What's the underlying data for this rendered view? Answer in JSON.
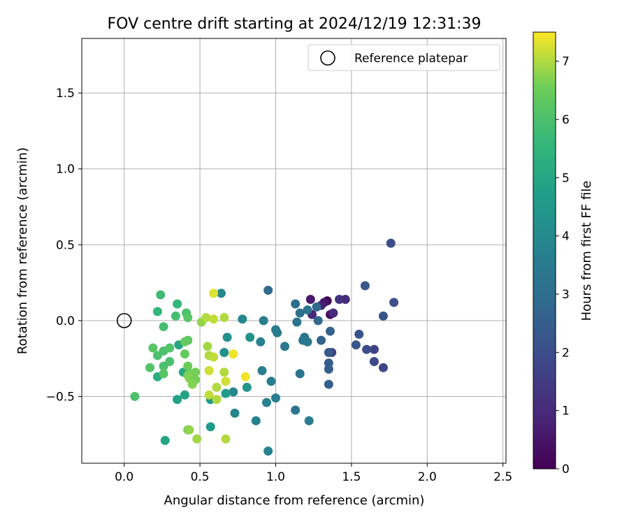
{
  "chart_data": {
    "type": "scatter",
    "title": "FOV centre drift starting at 2024/12/19 12:31:39",
    "xlabel": "Angular distance from reference (arcmin)",
    "ylabel": "Rotation from reference (arcmin)",
    "xlim": [
      -0.28,
      2.52
    ],
    "ylim": [
      -0.94,
      1.86
    ],
    "xticks": [
      0.0,
      0.5,
      1.0,
      1.5,
      2.0,
      2.5
    ],
    "xtick_labels": [
      "0.0",
      "0.5",
      "1.0",
      "1.5",
      "2.0",
      "2.5"
    ],
    "yticks": [
      -0.5,
      0.0,
      0.5,
      1.0,
      1.5
    ],
    "ytick_labels": [
      "−0.5",
      "0.0",
      "0.5",
      "1.0",
      "1.5"
    ],
    "grid": true,
    "legend": {
      "placement": "top-right",
      "entries": [
        "Reference platepar"
      ]
    },
    "reference_point": {
      "x": 0.0,
      "y": 0.0
    },
    "colorbar": {
      "label": "Hours from first FF file",
      "colormap": "viridis",
      "range": [
        0,
        7.5
      ],
      "ticks": [
        0,
        1,
        2,
        3,
        4,
        5,
        6,
        7
      ],
      "tick_labels": [
        "0",
        "1",
        "2",
        "3",
        "4",
        "5",
        "6",
        "7"
      ]
    },
    "points": [
      {
        "x": 1.34,
        "y": 0.13,
        "c": 0.05
      },
      {
        "x": 1.36,
        "y": 0.04,
        "c": 0.3
      },
      {
        "x": 1.32,
        "y": 0.12,
        "c": 0.5
      },
      {
        "x": 1.23,
        "y": 0.14,
        "c": 0.6
      },
      {
        "x": 1.3,
        "y": 0.1,
        "c": 0.8
      },
      {
        "x": 1.24,
        "y": 0.04,
        "c": 0.9
      },
      {
        "x": 1.38,
        "y": 0.05,
        "c": 1.0
      },
      {
        "x": 1.42,
        "y": 0.14,
        "c": 1.2
      },
      {
        "x": 1.46,
        "y": 0.14,
        "c": 1.1
      },
      {
        "x": 1.37,
        "y": -0.21,
        "c": 1.6
      },
      {
        "x": 1.65,
        "y": -0.19,
        "c": 1.7
      },
      {
        "x": 1.71,
        "y": -0.31,
        "c": 1.8
      },
      {
        "x": 1.65,
        "y": -0.27,
        "c": 1.9
      },
      {
        "x": 1.6,
        "y": -0.19,
        "c": 2.0
      },
      {
        "x": 1.76,
        "y": 0.51,
        "c": 2.0
      },
      {
        "x": 1.78,
        "y": 0.12,
        "c": 2.1
      },
      {
        "x": 1.71,
        "y": 0.03,
        "c": 2.2
      },
      {
        "x": 1.59,
        "y": 0.23,
        "c": 2.3
      },
      {
        "x": 1.55,
        "y": -0.09,
        "c": 2.2
      },
      {
        "x": 1.53,
        "y": -0.16,
        "c": 2.3
      },
      {
        "x": 1.35,
        "y": -0.21,
        "c": 2.4
      },
      {
        "x": 1.35,
        "y": -0.28,
        "c": 2.5
      },
      {
        "x": 1.35,
        "y": -0.32,
        "c": 2.5
      },
      {
        "x": 1.35,
        "y": -0.42,
        "c": 2.6
      },
      {
        "x": 1.36,
        "y": -0.07,
        "c": 2.6
      },
      {
        "x": 1.3,
        "y": -0.13,
        "c": 2.7
      },
      {
        "x": 1.28,
        "y": 0.0,
        "c": 2.8
      },
      {
        "x": 1.27,
        "y": 0.09,
        "c": 2.9
      },
      {
        "x": 0.95,
        "y": 0.2,
        "c": 3.0
      },
      {
        "x": 1.13,
        "y": 0.11,
        "c": 3.0
      },
      {
        "x": 1.16,
        "y": 0.05,
        "c": 3.1
      },
      {
        "x": 1.14,
        "y": -0.01,
        "c": 3.2
      },
      {
        "x": 1.21,
        "y": 0.07,
        "c": 3.2
      },
      {
        "x": 1.19,
        "y": -0.11,
        "c": 3.3
      },
      {
        "x": 1.21,
        "y": -0.14,
        "c": 3.3
      },
      {
        "x": 1.18,
        "y": -0.13,
        "c": 3.4
      },
      {
        "x": 1.16,
        "y": -0.35,
        "c": 3.2
      },
      {
        "x": 1.13,
        "y": -0.59,
        "c": 3.3
      },
      {
        "x": 1.22,
        "y": -0.66,
        "c": 3.5
      },
      {
        "x": 1.06,
        "y": -0.17,
        "c": 3.4
      },
      {
        "x": 1.0,
        "y": -0.06,
        "c": 3.5
      },
      {
        "x": 1.01,
        "y": -0.08,
        "c": 3.5
      },
      {
        "x": 0.92,
        "y": 0.0,
        "c": 3.6
      },
      {
        "x": 0.9,
        "y": -0.14,
        "c": 3.7
      },
      {
        "x": 0.91,
        "y": -0.33,
        "c": 3.6
      },
      {
        "x": 0.97,
        "y": -0.4,
        "c": 3.6
      },
      {
        "x": 1.0,
        "y": -0.51,
        "c": 3.6
      },
      {
        "x": 0.94,
        "y": -0.54,
        "c": 3.7
      },
      {
        "x": 0.95,
        "y": -0.86,
        "c": 3.8
      },
      {
        "x": 0.87,
        "y": -0.66,
        "c": 3.8
      },
      {
        "x": 0.73,
        "y": -0.61,
        "c": 3.9
      },
      {
        "x": 0.72,
        "y": -0.47,
        "c": 3.9
      },
      {
        "x": 0.64,
        "y": 0.18,
        "c": 4.0
      },
      {
        "x": 0.78,
        "y": 0.01,
        "c": 4.0
      },
      {
        "x": 0.68,
        "y": -0.11,
        "c": 4.2
      },
      {
        "x": 0.66,
        "y": -0.21,
        "c": 4.3
      },
      {
        "x": 0.83,
        "y": -0.11,
        "c": 4.3
      },
      {
        "x": 0.81,
        "y": -0.44,
        "c": 4.4
      },
      {
        "x": 0.67,
        "y": -0.48,
        "c": 4.6
      },
      {
        "x": 0.57,
        "y": -0.7,
        "c": 4.6
      },
      {
        "x": 0.57,
        "y": -0.52,
        "c": 4.6
      },
      {
        "x": 0.35,
        "y": -0.52,
        "c": 4.8
      },
      {
        "x": 0.27,
        "y": -0.79,
        "c": 4.9
      },
      {
        "x": 0.4,
        "y": -0.49,
        "c": 4.9
      },
      {
        "x": 0.36,
        "y": -0.16,
        "c": 5.0
      },
      {
        "x": 0.39,
        "y": -0.34,
        "c": 5.1
      },
      {
        "x": 0.22,
        "y": -0.37,
        "c": 5.3
      },
      {
        "x": 0.22,
        "y": 0.06,
        "c": 5.6
      },
      {
        "x": 0.26,
        "y": -0.04,
        "c": 5.9
      },
      {
        "x": 0.35,
        "y": 0.11,
        "c": 5.6
      },
      {
        "x": 0.24,
        "y": 0.17,
        "c": 5.8
      },
      {
        "x": 0.34,
        "y": 0.03,
        "c": 5.9
      },
      {
        "x": 0.41,
        "y": 0.05,
        "c": 6.0
      },
      {
        "x": 0.42,
        "y": 0.02,
        "c": 6.2
      },
      {
        "x": 0.26,
        "y": -0.2,
        "c": 6.0
      },
      {
        "x": 0.3,
        "y": -0.18,
        "c": 6.1
      },
      {
        "x": 0.19,
        "y": -0.18,
        "c": 6.2
      },
      {
        "x": 0.22,
        "y": -0.23,
        "c": 6.0
      },
      {
        "x": 0.3,
        "y": -0.27,
        "c": 6.0
      },
      {
        "x": 0.26,
        "y": -0.3,
        "c": 6.0
      },
      {
        "x": 0.17,
        "y": -0.31,
        "c": 6.1
      },
      {
        "x": 0.26,
        "y": -0.35,
        "c": 6.2
      },
      {
        "x": 0.07,
        "y": -0.5,
        "c": 6.0
      },
      {
        "x": 0.42,
        "y": -0.13,
        "c": 6.3
      },
      {
        "x": 0.4,
        "y": -0.14,
        "c": 6.4
      },
      {
        "x": 0.4,
        "y": -0.22,
        "c": 6.4
      },
      {
        "x": 0.42,
        "y": -0.3,
        "c": 6.5
      },
      {
        "x": 0.42,
        "y": -0.36,
        "c": 6.6
      },
      {
        "x": 0.45,
        "y": -0.35,
        "c": 6.6
      },
      {
        "x": 0.47,
        "y": -0.34,
        "c": 6.6
      },
      {
        "x": 0.43,
        "y": -0.38,
        "c": 6.7
      },
      {
        "x": 0.47,
        "y": -0.39,
        "c": 6.6
      },
      {
        "x": 0.45,
        "y": -0.42,
        "c": 6.7
      },
      {
        "x": 0.42,
        "y": -0.72,
        "c": 6.6
      },
      {
        "x": 0.43,
        "y": -0.72,
        "c": 6.8
      },
      {
        "x": 0.48,
        "y": -0.78,
        "c": 6.9
      },
      {
        "x": 0.51,
        "y": -0.01,
        "c": 6.8
      },
      {
        "x": 0.54,
        "y": 0.02,
        "c": 7.0
      },
      {
        "x": 0.59,
        "y": 0.01,
        "c": 7.1
      },
      {
        "x": 0.66,
        "y": 0.02,
        "c": 7.0
      },
      {
        "x": 0.59,
        "y": 0.18,
        "c": 7.3
      },
      {
        "x": 0.55,
        "y": -0.17,
        "c": 6.9
      },
      {
        "x": 0.56,
        "y": -0.23,
        "c": 7.0
      },
      {
        "x": 0.59,
        "y": -0.24,
        "c": 7.1
      },
      {
        "x": 0.56,
        "y": -0.33,
        "c": 7.2
      },
      {
        "x": 0.61,
        "y": -0.44,
        "c": 7.0
      },
      {
        "x": 0.56,
        "y": -0.49,
        "c": 7.1
      },
      {
        "x": 0.61,
        "y": -0.52,
        "c": 7.0
      },
      {
        "x": 0.67,
        "y": -0.4,
        "c": 7.2
      },
      {
        "x": 0.66,
        "y": -0.34,
        "c": 7.0
      },
      {
        "x": 0.67,
        "y": -0.78,
        "c": 7.0
      },
      {
        "x": 0.72,
        "y": -0.22,
        "c": 7.4
      },
      {
        "x": 0.8,
        "y": -0.37,
        "c": 7.4
      }
    ]
  }
}
